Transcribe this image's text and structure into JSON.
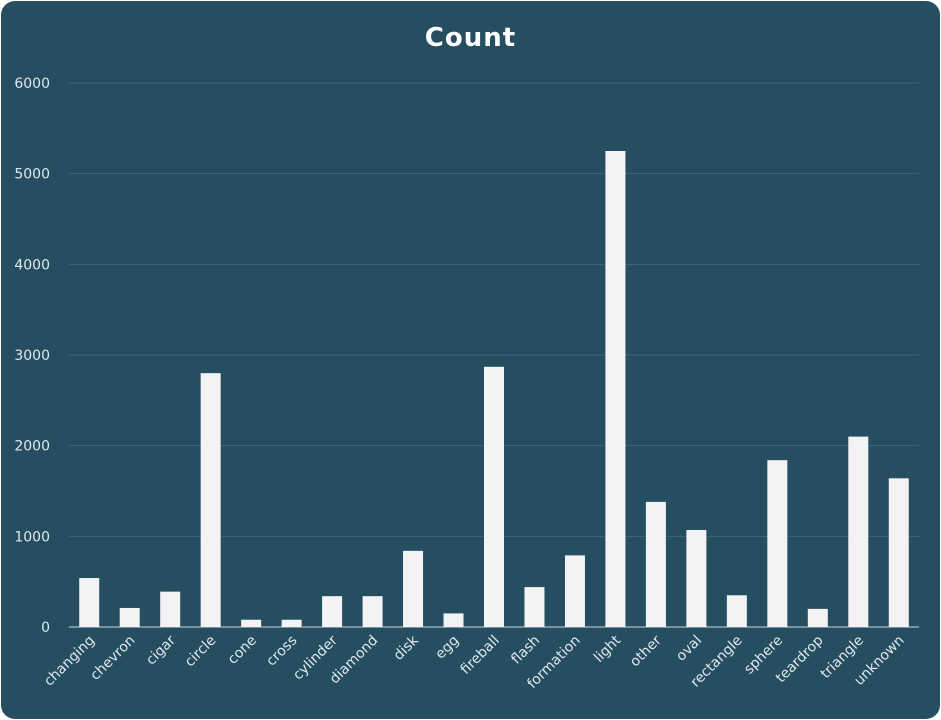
{
  "chart_data": {
    "type": "bar",
    "title": "Count",
    "xlabel": "",
    "ylabel": "",
    "ylim": [
      0,
      6000
    ],
    "yticks": [
      0,
      1000,
      2000,
      3000,
      4000,
      5000,
      6000
    ],
    "grid": true,
    "categories": [
      "changing",
      "chevron",
      "cigar",
      "circle",
      "cone",
      "cross",
      "cylinder",
      "diamond",
      "disk",
      "egg",
      "fireball",
      "flash",
      "formation",
      "light",
      "other",
      "oval",
      "rectangle",
      "sphere",
      "teardrop",
      "triangle",
      "unknown"
    ],
    "values": [
      540,
      210,
      390,
      2800,
      80,
      80,
      340,
      340,
      840,
      150,
      2870,
      440,
      790,
      5250,
      1380,
      1070,
      350,
      1840,
      200,
      2100,
      1640
    ],
    "colors": {
      "background": "#264e61",
      "bar": "#f3f3f6",
      "text": "#dfe8ee",
      "grid": "#3f6678"
    }
  }
}
